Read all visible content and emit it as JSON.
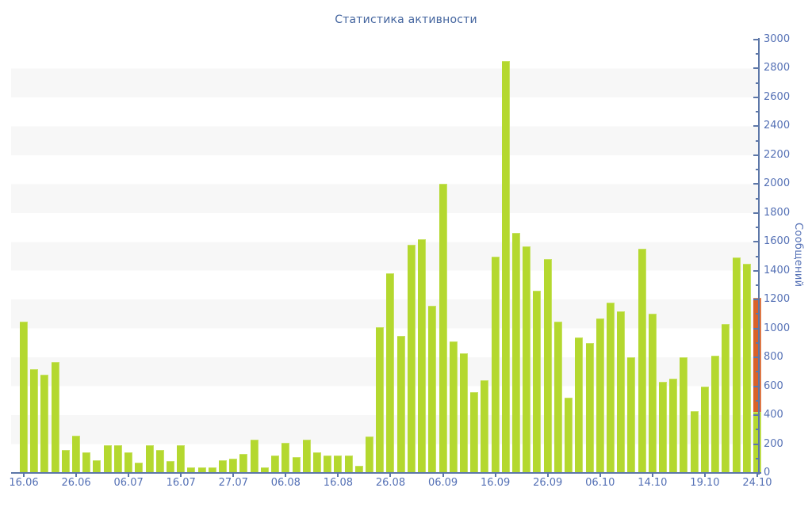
{
  "title": "Статистика активности",
  "y_axis": {
    "label": "Сообщений",
    "tick_labels": [
      "0",
      "200",
      "400",
      "600",
      "800",
      "1000",
      "1200",
      "1400",
      "1600",
      "1800",
      "2000",
      "2200",
      "2400",
      "2600",
      "2800",
      "3000"
    ]
  },
  "x_axis": {
    "tick_labels": [
      "16.06",
      "26.06",
      "06.07",
      "16.07",
      "27.07",
      "06.08",
      "16.08",
      "26.08",
      "06.09",
      "16.09",
      "26.09",
      "06.10",
      "14.10",
      "19.10",
      "24.10"
    ]
  },
  "chart_data": {
    "type": "bar",
    "title": "Статистика активности",
    "xlabel": "",
    "ylabel": "Сообщений",
    "ylim": [
      0,
      3000
    ],
    "y_major_step": 200,
    "y_minor_step": 100,
    "grid": "horizontal-bands",
    "band_colors": {
      "even": "#ffffff",
      "odd": "#f7f7f7"
    },
    "legend": "none",
    "bar_count": 71,
    "x_major_tick_every_n_bars": 5,
    "x_major_tick_labels": [
      "16.06",
      "26.06",
      "06.07",
      "16.07",
      "27.07",
      "06.08",
      "16.08",
      "26.08",
      "06.09",
      "16.09",
      "26.09",
      "06.10",
      "14.10",
      "19.10",
      "24.10"
    ],
    "values": [
      1050,
      720,
      680,
      770,
      160,
      260,
      140,
      90,
      190,
      190,
      140,
      70,
      190,
      160,
      80,
      190,
      40,
      40,
      40,
      90,
      100,
      130,
      230,
      40,
      120,
      210,
      110,
      230,
      140,
      120,
      120,
      120,
      50,
      250,
      1010,
      1380,
      950,
      1580,
      1620,
      1160,
      2000,
      910,
      830,
      560,
      640,
      1500,
      2850,
      1660,
      1570,
      1260,
      1480,
      1050,
      520,
      940,
      900,
      1070,
      1180,
      1120,
      800,
      1550,
      1100,
      630,
      650,
      800,
      430,
      600,
      810,
      1030,
      1490,
      1450,
      1210
    ],
    "last_bar_segments": [
      {
        "name": "green-part",
        "value": 425
      },
      {
        "name": "orange-part",
        "value": 785
      }
    ],
    "colors": {
      "bar_green": "#b4d82f",
      "bar_orange": "#d96229",
      "axis": "#5d77a8",
      "text": "#5470b5",
      "title_text": "#44659f"
    }
  }
}
